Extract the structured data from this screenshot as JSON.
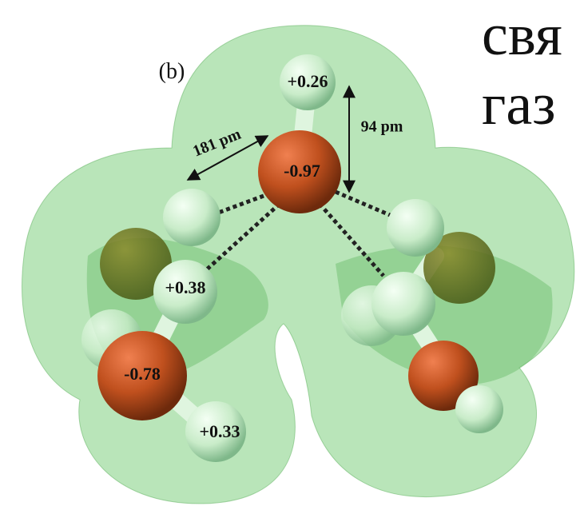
{
  "panel_label": "(b)",
  "side_text": [
    "свя",
    "газ"
  ],
  "charges": {
    "top_h": "+0.26",
    "center_o": "-0.97",
    "left_h": "+0.38",
    "left_o": "-0.78",
    "bottom_h": "+0.33"
  },
  "distances": {
    "h_bond": "181 pm",
    "oh_bond": "94 pm"
  }
}
